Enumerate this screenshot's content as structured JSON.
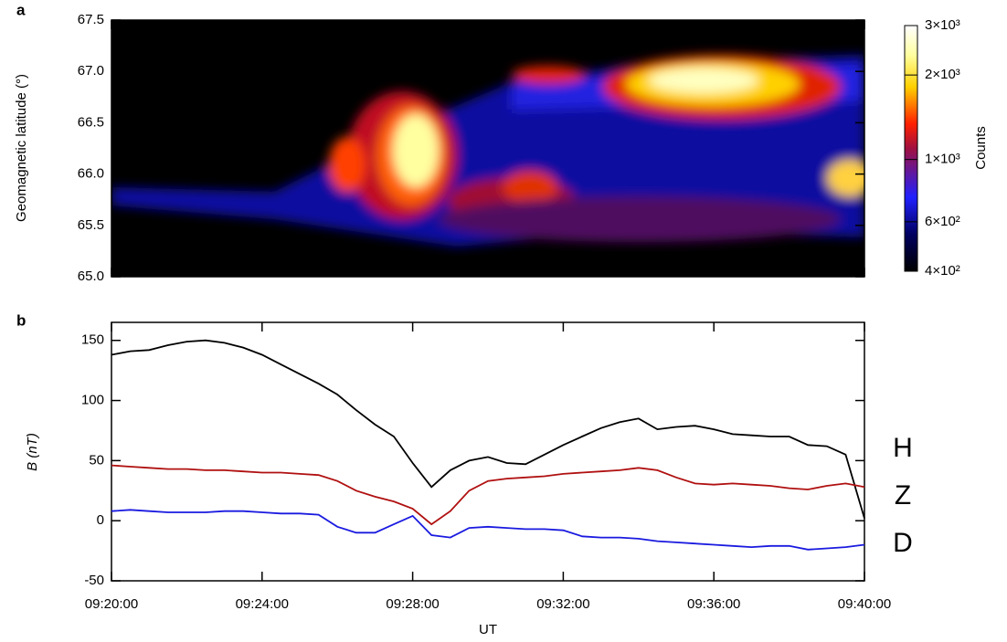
{
  "chart_data": [
    {
      "type": "heatmap",
      "panel_label": "a",
      "y_label": "Geomagnetic latitude (°)",
      "ylim": [
        65.0,
        67.5
      ],
      "yticks": [
        {
          "value": 65.0,
          "label": "65.0"
        },
        65.5,
        {
          "value": 66.0,
          "label": "66.0"
        },
        66.5,
        {
          "value": 67.0,
          "label": "67.0"
        },
        67.5
      ],
      "xlim": [
        "09:20:00",
        "09:40:00"
      ],
      "xticks": [
        "09:20:00",
        "09:24:00",
        "09:28:00",
        "09:32:00",
        "09:36:00",
        "09:40:00"
      ],
      "colorbar": {
        "label": "Counts",
        "lim": [
          400,
          3000
        ],
        "log": true,
        "ticks": [
          {
            "value": 400,
            "label": "4×10²"
          },
          {
            "value": 600,
            "label": "6×10²"
          },
          {
            "value": 1000,
            "label": "1×10³"
          },
          {
            "value": 2000,
            "label": "2×10³"
          },
          {
            "value": 3000,
            "label": "3×10³"
          }
        ]
      }
    },
    {
      "type": "line",
      "panel_label": "b",
      "y_label": "B (nT)",
      "x_label": "UT",
      "ylim": [
        -50,
        165
      ],
      "yticks": [
        -50,
        0,
        50,
        100,
        150
      ],
      "xlim": [
        "09:20:00",
        "09:40:00"
      ],
      "xticks": [
        "09:20:00",
        "09:24:00",
        "09:28:00",
        "09:32:00",
        "09:36:00",
        "09:40:00"
      ],
      "x": [
        "09:20:00",
        "09:20:30",
        "09:21:00",
        "09:21:30",
        "09:22:00",
        "09:22:30",
        "09:23:00",
        "09:23:30",
        "09:24:00",
        "09:24:30",
        "09:25:00",
        "09:25:30",
        "09:26:00",
        "09:26:30",
        "09:27:00",
        "09:27:30",
        "09:28:00",
        "09:28:30",
        "09:29:00",
        "09:29:30",
        "09:30:00",
        "09:30:30",
        "09:31:00",
        "09:31:30",
        "09:32:00",
        "09:32:30",
        "09:33:00",
        "09:33:30",
        "09:34:00",
        "09:34:30",
        "09:35:00",
        "09:35:30",
        "09:36:00",
        "09:36:30",
        "09:37:00",
        "09:37:30",
        "09:38:00",
        "09:38:30",
        "09:39:00",
        "09:39:30",
        "09:40:00"
      ],
      "series": [
        {
          "name": "H",
          "color": "#000000",
          "values": [
            138,
            141,
            142,
            146,
            149,
            150,
            148,
            144,
            138,
            130,
            122,
            114,
            105,
            92,
            80,
            70,
            48,
            28,
            42,
            50,
            53,
            48,
            47,
            55,
            63,
            70,
            77,
            82,
            85,
            76,
            78,
            79,
            76,
            72,
            71,
            70,
            70,
            63,
            62,
            55,
            2
          ]
        },
        {
          "name": "Z",
          "color": "#b01010",
          "values": [
            46,
            45,
            44,
            43,
            43,
            42,
            42,
            41,
            40,
            40,
            39,
            38,
            33,
            25,
            20,
            16,
            10,
            -3,
            8,
            25,
            33,
            35,
            36,
            37,
            39,
            40,
            41,
            42,
            44,
            42,
            36,
            31,
            30,
            31,
            30,
            29,
            27,
            26,
            29,
            31,
            28
          ]
        },
        {
          "name": "D",
          "color": "#1a1ae0",
          "values": [
            8,
            9,
            8,
            7,
            7,
            7,
            8,
            8,
            7,
            6,
            6,
            5,
            -5,
            -10,
            -10,
            -3,
            4,
            -12,
            -14,
            -6,
            -5,
            -6,
            -7,
            -7,
            -8,
            -13,
            -14,
            -14,
            -15,
            -17,
            -18,
            -19,
            -20,
            -21,
            -22,
            -21,
            -21,
            -24,
            -23,
            -22,
            -20
          ]
        }
      ]
    }
  ]
}
